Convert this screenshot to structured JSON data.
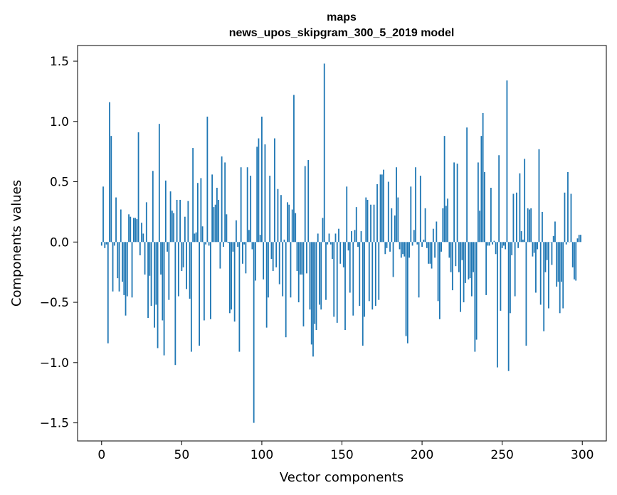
{
  "chart_data": {
    "type": "bar",
    "title": "maps",
    "subtitle": "news_upos_skipgram_300_5_2019 model",
    "xlabel": "Vector components",
    "ylabel": "Components values",
    "xlim": [
      -15,
      315
    ],
    "ylim": [
      -1.65,
      1.63
    ],
    "x_ticks": [
      0,
      50,
      100,
      150,
      200,
      250,
      300
    ],
    "x_tick_labels": [
      "0",
      "50",
      "100",
      "150",
      "200",
      "250",
      "300"
    ],
    "y_ticks": [
      -1.5,
      -1.0,
      -0.5,
      0.0,
      0.5,
      1.0,
      1.5
    ],
    "y_tick_labels": [
      "−1.5",
      "−1.0",
      "−0.5",
      "0.0",
      "0.5",
      "1.0",
      "1.5"
    ],
    "bar_color": "#1f77b4",
    "grid": false,
    "values": [
      -0.03,
      0.46,
      -0.05,
      -0.02,
      -0.84,
      1.16,
      0.88,
      -0.41,
      -0.03,
      0.37,
      -0.3,
      -0.41,
      0.27,
      -0.33,
      -0.44,
      -0.61,
      -0.45,
      0.23,
      0.21,
      -0.46,
      0.2,
      0.2,
      0.19,
      0.91,
      -0.11,
      0.16,
      0.07,
      -0.27,
      0.33,
      -0.63,
      -0.28,
      -0.53,
      0.59,
      -0.71,
      -0.52,
      -0.88,
      0.98,
      -0.27,
      -0.65,
      -0.94,
      0.51,
      -0.08,
      -0.48,
      0.42,
      0.26,
      0.24,
      -1.02,
      0.35,
      -0.45,
      0.35,
      -0.24,
      -0.21,
      0.21,
      -0.39,
      0.34,
      -0.47,
      -0.91,
      0.78,
      0.07,
      0.08,
      0.49,
      -0.86,
      0.53,
      0.13,
      -0.65,
      -0.02,
      1.04,
      -0.03,
      -0.64,
      0.56,
      0.29,
      0.31,
      0.45,
      0.35,
      -0.22,
      0.71,
      -0.04,
      0.66,
      0.23,
      -0.01,
      -0.59,
      -0.56,
      -0.08,
      -0.66,
      0.18,
      -0.04,
      -0.91,
      0.62,
      -0.18,
      -0.02,
      -0.26,
      0.62,
      0.1,
      0.55,
      -0.06,
      -1.5,
      -0.32,
      0.79,
      0.86,
      0.06,
      1.04,
      -0.31,
      0.81,
      -0.71,
      -0.46,
      0.55,
      -0.14,
      -0.24,
      0.86,
      -0.21,
      0.44,
      -0.35,
      0.39,
      -0.45,
      0.02,
      -0.79,
      0.33,
      0.31,
      -0.46,
      0.27,
      1.22,
      0.24,
      -0.24,
      -0.5,
      -0.27,
      -0.27,
      -0.7,
      0.63,
      -0.26,
      0.68,
      -0.56,
      -0.85,
      -0.95,
      -0.68,
      -0.73,
      0.07,
      -0.52,
      -0.56,
      0.2,
      1.48,
      -0.48,
      -0.02,
      0.07,
      -0.02,
      -0.14,
      -0.62,
      0.07,
      -0.67,
      0.11,
      -0.18,
      0.0,
      -0.21,
      -0.73,
      0.46,
      -0.07,
      -0.42,
      0.09,
      -0.61,
      0.1,
      0.29,
      -0.04,
      -0.53,
      0.09,
      -0.86,
      -0.62,
      0.37,
      0.35,
      -0.49,
      0.31,
      -0.56,
      0.31,
      -0.53,
      0.48,
      -0.48,
      0.56,
      0.56,
      0.6,
      -0.1,
      -0.05,
      0.5,
      -0.08,
      0.28,
      -0.29,
      0.22,
      0.62,
      0.37,
      -0.06,
      -0.13,
      -0.1,
      -0.12,
      -0.78,
      -0.84,
      -0.13,
      0.46,
      -0.03,
      0.1,
      0.62,
      -0.02,
      -0.46,
      0.55,
      -0.04,
      0.02,
      0.28,
      -0.05,
      -0.18,
      -0.18,
      -0.22,
      0.11,
      -0.13,
      0.17,
      -0.49,
      -0.64,
      -0.08,
      0.28,
      0.88,
      0.3,
      0.36,
      -0.13,
      -0.25,
      -0.4,
      0.66,
      -0.2,
      0.65,
      -0.25,
      -0.58,
      -0.15,
      -0.5,
      -0.34,
      0.95,
      -0.31,
      -0.3,
      -0.45,
      -0.25,
      -0.91,
      -0.81,
      0.66,
      0.26,
      0.88,
      1.07,
      0.58,
      -0.44,
      -0.03,
      -0.03,
      0.45,
      -0.02,
      0.01,
      -0.1,
      -1.04,
      0.72,
      -0.57,
      -0.05,
      -0.03,
      -0.06,
      1.34,
      -1.07,
      -0.59,
      -0.11,
      0.4,
      -0.45,
      0.41,
      -0.05,
      0.57,
      0.09,
      0.02,
      0.69,
      -0.86,
      0.28,
      0.27,
      0.28,
      -0.12,
      -0.09,
      -0.42,
      -0.06,
      0.77,
      -0.52,
      0.25,
      -0.74,
      -0.25,
      -0.15,
      -0.55,
      0.0,
      -0.19,
      0.05,
      0.17,
      -0.37,
      -0.33,
      -0.59,
      -0.33,
      -0.55,
      0.41,
      -0.02,
      0.58,
      0.0,
      0.4,
      -0.21,
      -0.31,
      -0.32,
      0.03,
      0.06,
      0.06
    ]
  }
}
